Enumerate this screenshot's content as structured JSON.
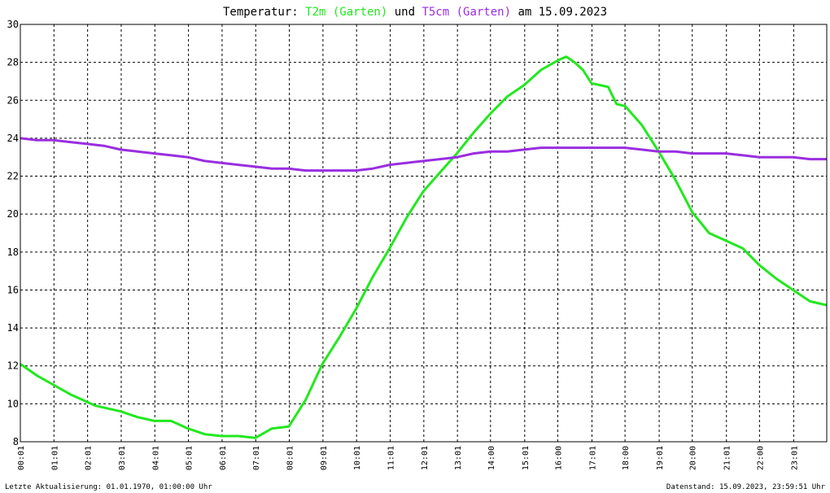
{
  "title": {
    "prefix": "Temperatur: ",
    "series1": "T2m (Garten)",
    "middle": " und ",
    "series2": "T5cm (Garten)",
    "suffix": " am 15.09.2023"
  },
  "footer": {
    "left": "Letzte Aktualisierung: 01.01.1970, 01:00:00 Uhr",
    "right": "Datenstand: 15.09.2023, 23:59:51 Uhr"
  },
  "colors": {
    "t2m": "#22e81e",
    "t5cm": "#9a2ee0",
    "grid": "#000000",
    "background": "#ffffff"
  },
  "chart_data": {
    "type": "line",
    "grid": true,
    "ylim": [
      8,
      30
    ],
    "y_ticks": [
      8,
      10,
      12,
      14,
      16,
      18,
      20,
      22,
      24,
      26,
      28,
      30
    ],
    "xlim": [
      "00:01",
      "24:00"
    ],
    "x_ticks": [
      "00:01",
      "01:01",
      "02:01",
      "03:01",
      "04:01",
      "05:01",
      "06:01",
      "07:01",
      "08:01",
      "09:01",
      "10:01",
      "11:01",
      "12:01",
      "13:01",
      "14:00",
      "15:01",
      "16:00",
      "17:01",
      "18:00",
      "19:01",
      "20:00",
      "21:01",
      "22:00",
      "23:01"
    ],
    "series": [
      {
        "name": "T2m (Garten)",
        "color": "#22e81e",
        "points": [
          [
            "00:01",
            12.1
          ],
          [
            "00:30",
            11.5
          ],
          [
            "01:00",
            11.0
          ],
          [
            "01:30",
            10.5
          ],
          [
            "02:00",
            10.1
          ],
          [
            "02:15",
            9.9
          ],
          [
            "03:00",
            9.6
          ],
          [
            "03:30",
            9.3
          ],
          [
            "04:00",
            9.1
          ],
          [
            "04:30",
            9.1
          ],
          [
            "05:00",
            8.7
          ],
          [
            "05:30",
            8.4
          ],
          [
            "06:00",
            8.3
          ],
          [
            "06:30",
            8.3
          ],
          [
            "07:00",
            8.2
          ],
          [
            "07:30",
            8.7
          ],
          [
            "08:00",
            8.8
          ],
          [
            "08:30",
            10.2
          ],
          [
            "09:00",
            12.1
          ],
          [
            "09:30",
            13.5
          ],
          [
            "10:00",
            15.0
          ],
          [
            "10:30",
            16.7
          ],
          [
            "11:00",
            18.2
          ],
          [
            "11:30",
            19.8
          ],
          [
            "12:00",
            21.2
          ],
          [
            "12:30",
            22.2
          ],
          [
            "13:00",
            23.2
          ],
          [
            "13:30",
            24.3
          ],
          [
            "14:00",
            25.3
          ],
          [
            "14:30",
            26.2
          ],
          [
            "15:00",
            26.8
          ],
          [
            "15:30",
            27.6
          ],
          [
            "16:00",
            28.1
          ],
          [
            "16:15",
            28.3
          ],
          [
            "16:30",
            28.0
          ],
          [
            "16:45",
            27.6
          ],
          [
            "17:00",
            26.9
          ],
          [
            "17:30",
            26.7
          ],
          [
            "17:45",
            25.8
          ],
          [
            "18:00",
            25.7
          ],
          [
            "18:30",
            24.7
          ],
          [
            "19:00",
            23.3
          ],
          [
            "19:30",
            21.8
          ],
          [
            "20:00",
            20.1
          ],
          [
            "20:30",
            19.0
          ],
          [
            "21:00",
            18.6
          ],
          [
            "21:30",
            18.2
          ],
          [
            "22:00",
            17.3
          ],
          [
            "22:30",
            16.6
          ],
          [
            "23:00",
            16.0
          ],
          [
            "23:30",
            15.4
          ],
          [
            "24:00",
            15.2
          ]
        ]
      },
      {
        "name": "T5cm (Garten)",
        "color": "#9a2ee0",
        "points": [
          [
            "00:01",
            24.0
          ],
          [
            "00:30",
            23.9
          ],
          [
            "01:00",
            23.9
          ],
          [
            "01:30",
            23.8
          ],
          [
            "02:00",
            23.7
          ],
          [
            "02:30",
            23.6
          ],
          [
            "03:00",
            23.4
          ],
          [
            "03:30",
            23.3
          ],
          [
            "04:00",
            23.2
          ],
          [
            "04:30",
            23.1
          ],
          [
            "05:00",
            23.0
          ],
          [
            "05:30",
            22.8
          ],
          [
            "06:00",
            22.7
          ],
          [
            "06:30",
            22.6
          ],
          [
            "07:00",
            22.5
          ],
          [
            "07:30",
            22.4
          ],
          [
            "08:00",
            22.4
          ],
          [
            "08:30",
            22.3
          ],
          [
            "09:00",
            22.3
          ],
          [
            "09:30",
            22.3
          ],
          [
            "10:00",
            22.3
          ],
          [
            "10:30",
            22.4
          ],
          [
            "11:00",
            22.6
          ],
          [
            "11:30",
            22.7
          ],
          [
            "12:00",
            22.8
          ],
          [
            "12:30",
            22.9
          ],
          [
            "13:00",
            23.0
          ],
          [
            "13:30",
            23.2
          ],
          [
            "14:00",
            23.3
          ],
          [
            "14:30",
            23.3
          ],
          [
            "15:00",
            23.4
          ],
          [
            "15:30",
            23.5
          ],
          [
            "16:00",
            23.5
          ],
          [
            "16:30",
            23.5
          ],
          [
            "17:00",
            23.5
          ],
          [
            "17:30",
            23.5
          ],
          [
            "18:00",
            23.5
          ],
          [
            "18:30",
            23.4
          ],
          [
            "19:00",
            23.3
          ],
          [
            "19:30",
            23.3
          ],
          [
            "20:00",
            23.2
          ],
          [
            "20:30",
            23.2
          ],
          [
            "21:00",
            23.2
          ],
          [
            "21:30",
            23.1
          ],
          [
            "22:00",
            23.0
          ],
          [
            "22:30",
            23.0
          ],
          [
            "23:00",
            23.0
          ],
          [
            "23:30",
            22.9
          ],
          [
            "24:00",
            22.9
          ]
        ]
      }
    ]
  }
}
